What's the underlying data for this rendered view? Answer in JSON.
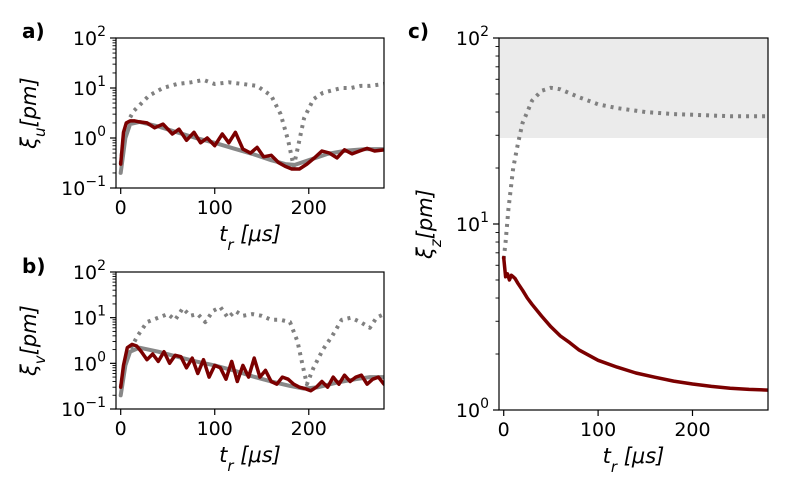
{
  "chart_data": [
    {
      "id": "a",
      "type": "line",
      "panel_label": "a)",
      "xlabel": "t_r [μs]",
      "ylabel": "ξ_u[pm]",
      "yscale": "log",
      "xlim": [
        -5,
        280
      ],
      "ylim": [
        0.1,
        100
      ],
      "xticks": [
        0,
        100,
        200
      ],
      "xtick_labels": [
        "0",
        "100",
        "200"
      ],
      "yticks": [
        0.1,
        1,
        10,
        100
      ],
      "ytick_labels": [
        {
          "base": "10",
          "exp": "−1"
        },
        {
          "base": "10",
          "exp": "0"
        },
        {
          "base": "10",
          "exp": "1"
        },
        {
          "base": "10",
          "exp": "2"
        }
      ],
      "series": [
        {
          "name": "dotted-gray",
          "style": "dotted",
          "color": "#808080",
          "x": [
            0,
            3,
            8,
            14,
            20,
            30,
            45,
            60,
            75,
            88,
            100,
            115,
            130,
            145,
            160,
            170,
            178,
            184,
            188,
            195,
            205,
            215,
            225,
            235,
            245,
            255,
            265,
            280
          ],
          "y": [
            0.3,
            1.0,
            2.2,
            3.5,
            4.5,
            7,
            10,
            12,
            13,
            14.5,
            12,
            13,
            12,
            11,
            7,
            3,
            0.9,
            0.27,
            0.6,
            2.5,
            6,
            8,
            9,
            10,
            10,
            11,
            11,
            12
          ]
        },
        {
          "name": "smooth-gray",
          "style": "solid",
          "color": "#888888",
          "x": [
            0,
            5,
            10,
            20,
            40,
            60,
            80,
            100,
            120,
            140,
            160,
            175,
            185,
            200,
            220,
            240,
            260,
            280
          ],
          "y": [
            0.2,
            1.0,
            1.9,
            2.1,
            1.7,
            1.3,
            1.0,
            0.8,
            0.62,
            0.48,
            0.36,
            0.3,
            0.29,
            0.36,
            0.48,
            0.56,
            0.6,
            0.6
          ]
        },
        {
          "name": "dark-red",
          "style": "solid",
          "color": "#7b0000",
          "x": [
            0,
            3,
            6,
            10,
            15,
            20,
            28,
            36,
            45,
            55,
            62,
            70,
            78,
            85,
            92,
            100,
            108,
            115,
            122,
            130,
            138,
            145,
            152,
            160,
            168,
            175,
            182,
            190,
            198,
            206,
            214,
            222,
            230,
            238,
            246,
            254,
            262,
            270,
            280
          ],
          "y": [
            0.3,
            1.3,
            2.0,
            2.2,
            2.2,
            2.1,
            2.0,
            1.6,
            1.9,
            1.2,
            1.5,
            0.9,
            1.3,
            0.8,
            1.0,
            0.7,
            1.2,
            0.8,
            1.3,
            0.6,
            0.5,
            0.65,
            0.42,
            0.45,
            0.32,
            0.27,
            0.24,
            0.24,
            0.3,
            0.4,
            0.55,
            0.5,
            0.4,
            0.58,
            0.48,
            0.55,
            0.62,
            0.55,
            0.58
          ]
        }
      ]
    },
    {
      "id": "b",
      "type": "line",
      "panel_label": "b)",
      "xlabel": "t_r [μs]",
      "ylabel": "ξ_v[pm]",
      "yscale": "log",
      "xlim": [
        -5,
        280
      ],
      "ylim": [
        0.1,
        100
      ],
      "xticks": [
        0,
        100,
        200
      ],
      "xtick_labels": [
        "0",
        "100",
        "200"
      ],
      "yticks": [
        0.1,
        1,
        10,
        100
      ],
      "ytick_labels": [
        {
          "base": "10",
          "exp": "−1"
        },
        {
          "base": "10",
          "exp": "0"
        },
        {
          "base": "10",
          "exp": "1"
        },
        {
          "base": "10",
          "exp": "2"
        }
      ],
      "series": [
        {
          "name": "dotted-gray",
          "style": "dotted",
          "color": "#808080",
          "x": [
            0,
            4,
            10,
            18,
            28,
            40,
            50,
            58,
            66,
            74,
            82,
            90,
            98,
            106,
            114,
            122,
            130,
            140,
            150,
            160,
            170,
            180,
            188,
            193,
            198,
            205,
            215,
            225,
            235,
            245,
            255,
            265,
            272,
            280
          ],
          "y": [
            0.3,
            0.8,
            2.0,
            4.0,
            8,
            10,
            12,
            9,
            16,
            11,
            12,
            8,
            14,
            17,
            10,
            14,
            11,
            12,
            11,
            9,
            9,
            8,
            3,
            1.0,
            0.35,
            0.8,
            2.0,
            4.0,
            9,
            10,
            8,
            6,
            10,
            12
          ]
        },
        {
          "name": "smooth-gray",
          "style": "solid",
          "color": "#888888",
          "x": [
            0,
            5,
            10,
            20,
            40,
            60,
            80,
            100,
            120,
            140,
            160,
            180,
            195,
            210,
            230,
            250,
            265,
            280
          ],
          "y": [
            0.2,
            0.9,
            1.8,
            2.2,
            1.8,
            1.4,
            1.1,
            0.9,
            0.7,
            0.52,
            0.4,
            0.32,
            0.28,
            0.3,
            0.38,
            0.45,
            0.5,
            0.5
          ]
        },
        {
          "name": "dark-red",
          "style": "solid",
          "color": "#7b0000",
          "x": [
            0,
            3,
            7,
            12,
            17,
            22,
            28,
            34,
            40,
            46,
            52,
            58,
            64,
            70,
            76,
            82,
            88,
            94,
            100,
            106,
            112,
            118,
            124,
            130,
            136,
            142,
            148,
            154,
            160,
            166,
            172,
            178,
            184,
            190,
            196,
            202,
            208,
            214,
            220,
            226,
            232,
            238,
            244,
            250,
            256,
            262,
            268,
            274,
            280
          ],
          "y": [
            0.3,
            0.9,
            2.2,
            2.6,
            2.4,
            1.8,
            1.2,
            1.6,
            1.1,
            1.8,
            1.0,
            1.5,
            1.4,
            0.8,
            1.3,
            0.6,
            1.2,
            0.5,
            0.9,
            0.8,
            0.45,
            1.1,
            0.4,
            0.9,
            0.5,
            1.3,
            0.5,
            0.7,
            0.4,
            0.35,
            0.5,
            0.45,
            0.35,
            0.3,
            0.28,
            0.25,
            0.3,
            0.4,
            0.3,
            0.5,
            0.35,
            0.55,
            0.4,
            0.5,
            0.55,
            0.35,
            0.45,
            0.5,
            0.35
          ]
        }
      ]
    },
    {
      "id": "c",
      "type": "line",
      "panel_label": "c)",
      "xlabel": "t_r [μs]",
      "ylabel": "ξ_z[pm]",
      "yscale": "log",
      "xlim": [
        -5,
        280
      ],
      "ylim": [
        1,
        100
      ],
      "xticks": [
        0,
        100,
        200
      ],
      "xtick_labels": [
        "0",
        "100",
        "200"
      ],
      "yticks": [
        1,
        10,
        100
      ],
      "ytick_labels": [
        {
          "base": "10",
          "exp": "0"
        },
        {
          "base": "10",
          "exp": "1"
        },
        {
          "base": "10",
          "exp": "2"
        }
      ],
      "shaded_band": {
        "y_from": 29,
        "y_to": 100,
        "color": "#ebebeb"
      },
      "series": [
        {
          "name": "dotted-gray",
          "style": "dotted",
          "color": "#808080",
          "x": [
            0,
            2,
            5,
            10,
            15,
            20,
            25,
            30,
            40,
            50,
            60,
            80,
            100,
            120,
            150,
            180,
            210,
            240,
            260,
            280
          ],
          "y": [
            6.5,
            8,
            12,
            20,
            27,
            35,
            40,
            46,
            52,
            54,
            53,
            48,
            44,
            42,
            40,
            39,
            38.5,
            38,
            38,
            38
          ]
        },
        {
          "name": "dark-red",
          "style": "solid",
          "color": "#7b0000",
          "x": [
            0,
            2,
            4,
            6,
            8,
            10,
            12,
            15,
            20,
            25,
            30,
            40,
            50,
            60,
            70,
            80,
            100,
            120,
            140,
            160,
            180,
            200,
            220,
            240,
            260,
            280
          ],
          "y": [
            6.6,
            5.2,
            5.4,
            5.0,
            5.3,
            5.2,
            5.1,
            4.8,
            4.4,
            4.0,
            3.7,
            3.2,
            2.8,
            2.5,
            2.3,
            2.1,
            1.85,
            1.7,
            1.58,
            1.5,
            1.43,
            1.38,
            1.34,
            1.31,
            1.29,
            1.28
          ]
        }
      ]
    }
  ]
}
